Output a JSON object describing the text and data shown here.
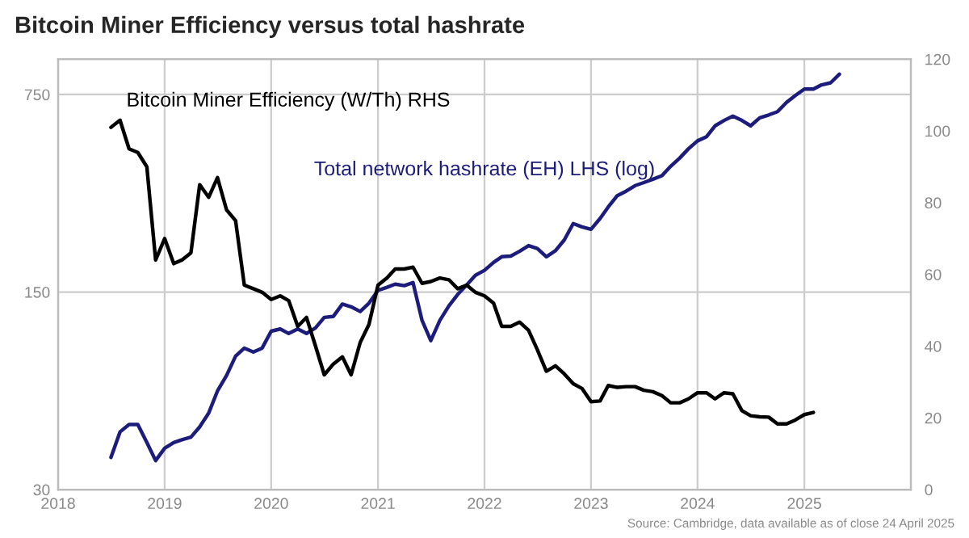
{
  "chart_data": {
    "type": "line",
    "title": "Bitcoin Miner Efficiency versus total hashrate",
    "annotations": [
      "Source: Cambridge, data available as of close 24 April 2025"
    ],
    "xlim": [
      "2018-01-01",
      "2026-01-01"
    ],
    "xticks": [
      "2018",
      "2019",
      "2020",
      "2021",
      "2022",
      "2023",
      "2024",
      "2025"
    ],
    "log": "y",
    "ylim": [
      30,
      1000
    ],
    "yticks": [
      30,
      150,
      750
    ],
    "y2lim": [
      0,
      120
    ],
    "y2ticks": [
      0,
      20,
      40,
      60,
      80,
      100,
      120
    ],
    "grid": true,
    "legend": false,
    "line_style": "solid",
    "marker": "none",
    "series": [
      {
        "name": "Total network hashrate (EH) LHS (log)",
        "color": "#1c1c7c",
        "x": [
          "2018-07",
          "2018-08",
          "2018-09",
          "2018-10",
          "2018-11",
          "2018-12",
          "2019-01",
          "2019-02",
          "2019-03",
          "2019-04",
          "2019-05",
          "2019-06",
          "2019-07",
          "2019-08",
          "2019-09",
          "2019-10",
          "2019-11",
          "2019-12",
          "2020-01",
          "2020-02",
          "2020-03",
          "2020-04",
          "2020-05",
          "2020-06",
          "2020-07",
          "2020-08",
          "2020-09",
          "2020-10",
          "2020-11",
          "2020-12",
          "2021-01",
          "2021-02",
          "2021-03",
          "2021-04",
          "2021-05",
          "2021-06",
          "2021-07",
          "2021-08",
          "2021-09",
          "2021-10",
          "2021-11",
          "2021-12",
          "2022-01",
          "2022-02",
          "2022-03",
          "2022-04",
          "2022-05",
          "2022-06",
          "2022-07",
          "2022-08",
          "2022-09",
          "2022-10",
          "2022-11",
          "2022-12",
          "2023-01",
          "2023-02",
          "2023-03",
          "2023-04",
          "2023-05",
          "2023-06",
          "2023-07",
          "2023-08",
          "2023-09",
          "2023-10",
          "2023-11",
          "2023-12",
          "2024-01",
          "2024-02",
          "2024-03",
          "2024-04",
          "2024-05",
          "2024-06",
          "2024-07",
          "2024-08",
          "2024-09",
          "2024-10",
          "2024-11",
          "2024-12",
          "2025-01",
          "2025-02",
          "2025-03",
          "2025-04",
          "2025-05"
        ],
        "values": [
          39,
          48,
          51,
          51,
          44,
          38,
          42,
          44,
          45,
          46,
          50,
          56,
          67,
          76,
          89,
          95,
          92,
          95,
          109,
          111,
          107,
          111,
          107,
          112,
          122,
          123,
          136,
          133,
          128,
          137,
          152,
          156,
          160,
          158,
          162,
          119,
          101,
          119,
          134,
          147,
          159,
          172,
          179,
          191,
          200,
          201,
          209,
          219,
          214,
          200,
          210,
          229,
          262,
          255,
          250,
          273,
          300,
          329,
          341,
          357,
          366,
          376,
          387,
          418,
          447,
          482,
          514,
          532,
          581,
          607,
          629,
          607,
          581,
          620,
          635,
          652,
          703,
          744,
          784,
          784,
          811,
          825,
          885
        ]
      },
      {
        "name": "Bitcoin Miner Efficiency (W/Th) RHS",
        "color": "#000000",
        "axis": "y2",
        "x": [
          "2018-07",
          "2018-08",
          "2018-09",
          "2018-10",
          "2018-11",
          "2018-12",
          "2019-01",
          "2019-02",
          "2019-03",
          "2019-04",
          "2019-05",
          "2019-06",
          "2019-07",
          "2019-08",
          "2019-09",
          "2019-10",
          "2019-11",
          "2019-12",
          "2020-01",
          "2020-02",
          "2020-03",
          "2020-04",
          "2020-05",
          "2020-06",
          "2020-07",
          "2020-08",
          "2020-09",
          "2020-10",
          "2020-11",
          "2020-12",
          "2021-01",
          "2021-02",
          "2021-03",
          "2021-04",
          "2021-05",
          "2021-06",
          "2021-07",
          "2021-08",
          "2021-09",
          "2021-10",
          "2021-11",
          "2021-12",
          "2022-01",
          "2022-02",
          "2022-03",
          "2022-04",
          "2022-05",
          "2022-06",
          "2022-07",
          "2022-08",
          "2022-09",
          "2022-10",
          "2022-11",
          "2022-12",
          "2023-01",
          "2023-02",
          "2023-03",
          "2023-04",
          "2023-05",
          "2023-06",
          "2023-07",
          "2023-08",
          "2023-09",
          "2023-10",
          "2023-11",
          "2023-12",
          "2024-01",
          "2024-02",
          "2024-03",
          "2024-04",
          "2024-05",
          "2024-06",
          "2024-07",
          "2024-08",
          "2024-09",
          "2024-10",
          "2024-11",
          "2024-12",
          "2025-01",
          "2025-02"
        ],
        "values": [
          101,
          103,
          95,
          94,
          90,
          64,
          70,
          63,
          64,
          66,
          85,
          81.5,
          87,
          78,
          75,
          57,
          56,
          55,
          53,
          54,
          52.7,
          45.5,
          48,
          40,
          32,
          35,
          37,
          32,
          41,
          46,
          57,
          59,
          61.5,
          61.5,
          62,
          57.5,
          58,
          59,
          58.5,
          56,
          57,
          55,
          54,
          52,
          45.5,
          45.5,
          46.7,
          44.4,
          39,
          33,
          34.5,
          32.3,
          29.5,
          28.2,
          24.5,
          24.7,
          29,
          28.5,
          28.7,
          28.7,
          27.7,
          27.3,
          26.2,
          24.2,
          24.2,
          25.3,
          27,
          27,
          25.3,
          27,
          26.7,
          22,
          20.6,
          20.3,
          20.2,
          18.3,
          18.3,
          19.4,
          20.9,
          21.5
        ]
      }
    ]
  }
}
